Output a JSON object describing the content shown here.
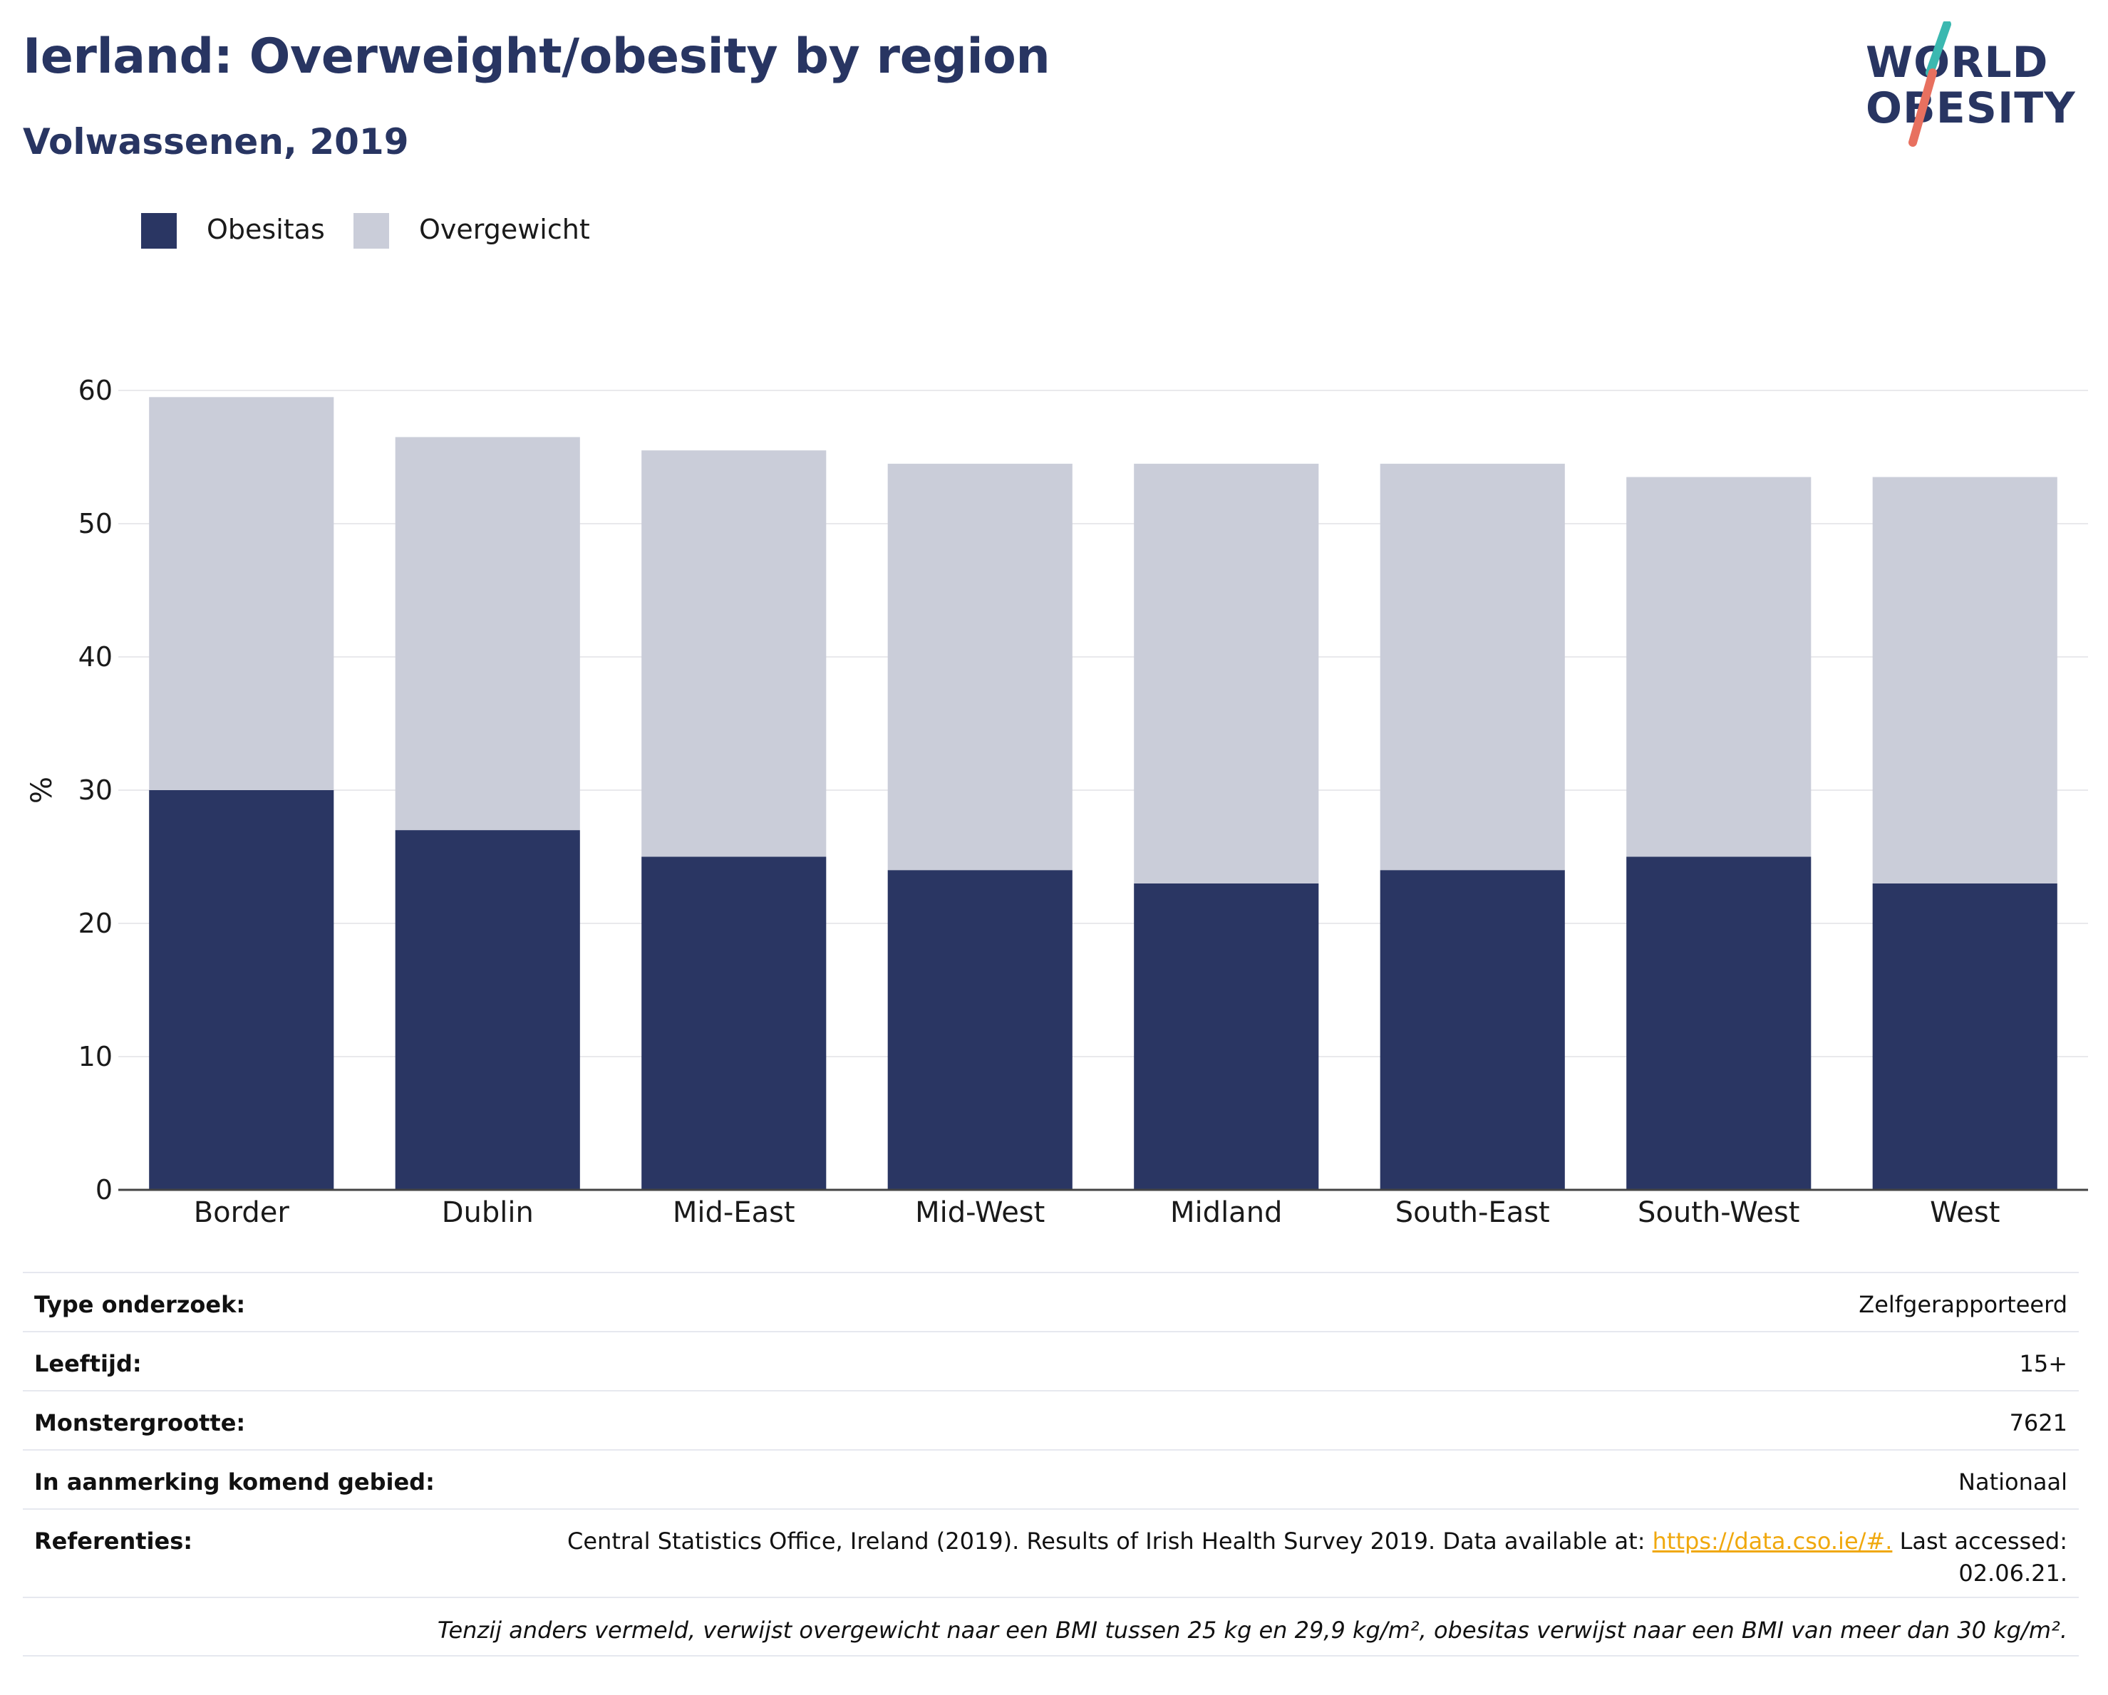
{
  "header": {
    "title": "Ierland: Overweight/obesity by region",
    "subtitle": "Volwassenen, 2019",
    "logo_line1": "WORLD",
    "logo_line2": "OBESITY",
    "logo_colors": {
      "teal": "#3bb8b0",
      "coral": "#e8705f",
      "navy": "#283562"
    }
  },
  "legend": [
    {
      "label": "Obesitas",
      "color": "#2a3663"
    },
    {
      "label": "Overgewicht",
      "color": "#cacdd9"
    }
  ],
  "chart_data": {
    "type": "bar",
    "stacked": true,
    "categories": [
      "Border",
      "Dublin",
      "Mid-East",
      "Mid-West",
      "Midland",
      "South-East",
      "South-West",
      "West"
    ],
    "series": [
      {
        "name": "Obesitas",
        "color": "#2a3663",
        "values": [
          30,
          27,
          25,
          24,
          23,
          24,
          25,
          23
        ]
      },
      {
        "name": "Overgewicht",
        "color": "#cacdd9",
        "values": [
          29.5,
          29.5,
          30.5,
          30.5,
          31.5,
          30.5,
          28.5,
          30.5
        ]
      }
    ],
    "ylabel": "%",
    "ylim": [
      0,
      60
    ],
    "yticks": [
      "0",
      "10",
      "20",
      "30",
      "40",
      "50",
      "60"
    ],
    "grid": true,
    "legend_position": "top-left"
  },
  "info": {
    "rows": [
      {
        "label": "Type onderzoek:",
        "value": "Zelfgerapporteerd"
      },
      {
        "label": "Leeftijd:",
        "value": "15+"
      },
      {
        "label": "Monstergrootte:",
        "value": "7621"
      },
      {
        "label": "In aanmerking komend gebied:",
        "value": "Nationaal"
      }
    ],
    "references_label": "Referenties:",
    "references_text": "Central Statistics Office, Ireland (2019). Results of Irish Health Survey 2019. Data available at:",
    "references_link": "https://data.cso.ie/#.",
    "references_after": "Last accessed:",
    "references_date": "02.06.21.",
    "note": "Tenzij anders vermeld, verwijst overgewicht naar een BMI tussen 25 kg en 29,9 kg/m², obesitas verwijst naar een BMI van meer dan 30 kg/m²."
  }
}
